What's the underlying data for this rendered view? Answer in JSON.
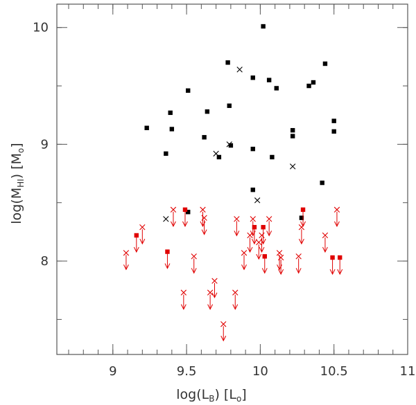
{
  "chart_data": {
    "type": "scatter",
    "xlabel": {
      "main": "log(L",
      "sub": "B",
      "unit_open": ") [L",
      "unit_sub": "o",
      "unit_close": "]"
    },
    "ylabel": {
      "main": "log(M",
      "sub": "HI",
      "unit_open": ") [M",
      "unit_sub": "o",
      "unit_close": "]"
    },
    "xlim": [
      8.62,
      11.0
    ],
    "ylim": [
      7.2,
      10.2
    ],
    "xticks": [
      9,
      9.5,
      10,
      10.5,
      11
    ],
    "xtick_labels": [
      "9",
      "9.5",
      "10",
      "10.5",
      "11"
    ],
    "yticks": [
      8,
      9,
      10
    ],
    "ytick_labels": [
      "8",
      "9",
      "10"
    ],
    "xminor_step": 0.1,
    "yminor_step": 0.5,
    "grid": false,
    "colors": {
      "black": "#000000",
      "red": "#e00000",
      "axis": "#555555"
    },
    "series": [
      {
        "marker": "square",
        "color": "black",
        "points": [
          [
            9.23,
            9.14
          ],
          [
            9.36,
            8.92
          ],
          [
            9.39,
            9.27
          ],
          [
            9.4,
            9.13
          ],
          [
            9.51,
            9.46
          ],
          [
            9.62,
            9.06
          ],
          [
            9.64,
            9.28
          ],
          [
            9.72,
            8.89
          ],
          [
            9.78,
            9.7
          ],
          [
            9.79,
            9.33
          ],
          [
            9.8,
            8.99
          ],
          [
            9.95,
            9.57
          ],
          [
            9.95,
            8.96
          ],
          [
            9.95,
            8.61
          ],
          [
            10.02,
            10.01
          ],
          [
            10.06,
            9.55
          ],
          [
            10.08,
            8.89
          ],
          [
            10.11,
            9.48
          ],
          [
            10.22,
            9.12
          ],
          [
            10.22,
            9.07
          ],
          [
            10.33,
            9.5
          ],
          [
            10.36,
            9.53
          ],
          [
            10.42,
            8.67
          ],
          [
            10.44,
            9.69
          ],
          [
            10.5,
            9.2
          ],
          [
            10.5,
            9.11
          ],
          [
            9.51,
            8.42
          ],
          [
            10.28,
            8.37
          ]
        ]
      },
      {
        "marker": "cross",
        "color": "black",
        "points": [
          [
            9.86,
            9.64
          ],
          [
            9.79,
            9.0
          ],
          [
            9.7,
            8.92
          ],
          [
            10.22,
            8.81
          ],
          [
            9.98,
            8.52
          ],
          [
            9.36,
            8.36
          ]
        ]
      },
      {
        "marker": "square",
        "color": "red",
        "upper_limit": true,
        "points": [
          [
            9.16,
            8.22
          ],
          [
            9.37,
            8.08
          ],
          [
            9.49,
            8.44
          ],
          [
            9.96,
            8.29
          ],
          [
            10.02,
            8.29
          ],
          [
            10.03,
            8.04
          ],
          [
            10.29,
            8.44
          ],
          [
            10.49,
            8.03
          ],
          [
            10.54,
            8.03
          ]
        ]
      },
      {
        "marker": "cross",
        "color": "red",
        "upper_limit": true,
        "points": [
          [
            9.09,
            8.07
          ],
          [
            9.2,
            8.29
          ],
          [
            9.41,
            8.44
          ],
          [
            9.48,
            7.73
          ],
          [
            9.55,
            8.04
          ],
          [
            9.61,
            8.44
          ],
          [
            9.62,
            8.37
          ],
          [
            9.66,
            7.73
          ],
          [
            9.69,
            7.83
          ],
          [
            9.75,
            7.46
          ],
          [
            9.83,
            7.73
          ],
          [
            9.84,
            8.36
          ],
          [
            9.89,
            8.07
          ],
          [
            9.93,
            8.22
          ],
          [
            9.95,
            8.36
          ],
          [
            9.99,
            8.16
          ],
          [
            10.01,
            8.22
          ],
          [
            10.06,
            8.36
          ],
          [
            10.13,
            8.07
          ],
          [
            10.14,
            8.03
          ],
          [
            10.26,
            8.04
          ],
          [
            10.28,
            8.29
          ],
          [
            10.44,
            8.22
          ],
          [
            10.52,
            8.44
          ]
        ]
      }
    ]
  }
}
